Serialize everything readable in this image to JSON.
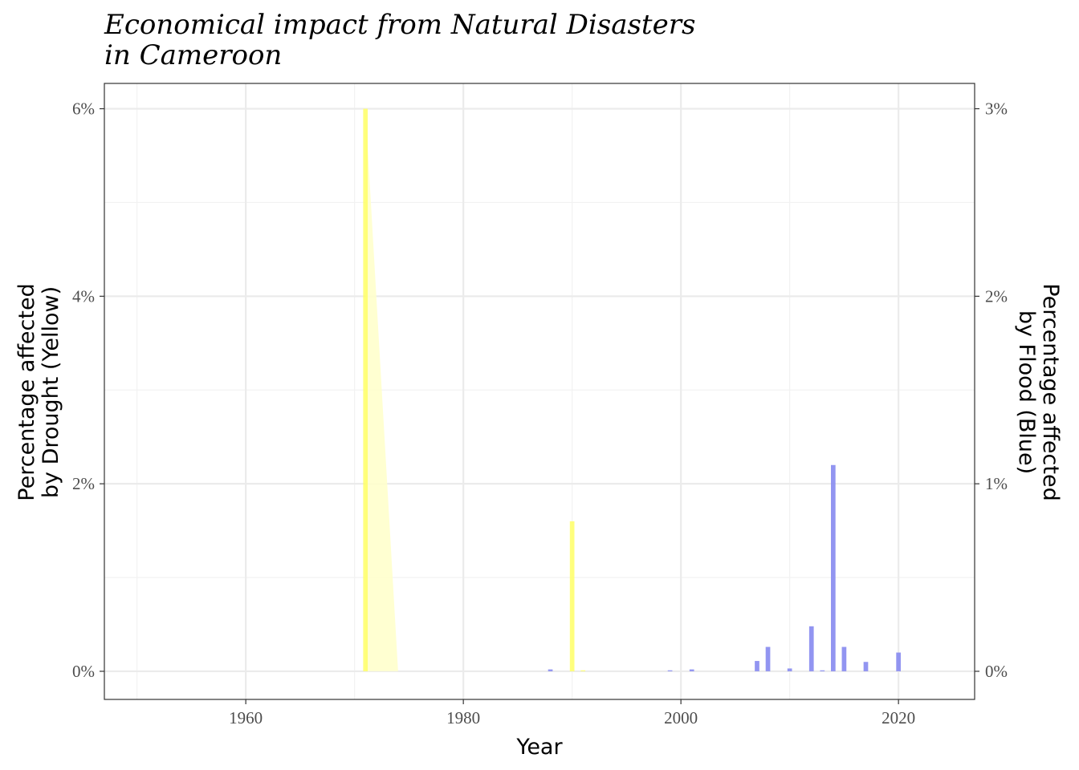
{
  "chart_data": {
    "type": "bar",
    "title_lines": [
      "Economical impact from Natural Disasters",
      "in Cameroon"
    ],
    "xlabel": "Year",
    "ylabel_left_lines": [
      "Percentage affected",
      "by Drought  (Yellow)"
    ],
    "ylabel_right_lines": [
      "Percentage affected",
      "by Flood (Blue)"
    ],
    "xlim": [
      1947,
      2027
    ],
    "ylim_left": [
      -0.3,
      6.27
    ],
    "ylim_right": [
      -0.15,
      3.135
    ],
    "x_ticks": [
      1960,
      1980,
      2000,
      2020
    ],
    "x_tick_labels": [
      "1960",
      "1980",
      "2000",
      "2020"
    ],
    "y_left_ticks": [
      0,
      2,
      4,
      6
    ],
    "y_left_tick_labels": [
      "0%",
      "2%",
      "4%",
      "6%"
    ],
    "y_right_ticks": [
      0,
      1,
      2,
      3
    ],
    "y_right_tick_labels": [
      "0%",
      "1%",
      "2%",
      "3%"
    ],
    "grid": true,
    "colors": {
      "drought": "#ffff66",
      "drought_area": "#ffffcc",
      "flood": "#8c8ff0",
      "grid_major": "#ebebeb",
      "grid_minor": "#f2f2f2",
      "panel_border": "#333333"
    },
    "series": [
      {
        "axis": "left",
        "points": [
          {
            "x": 1971,
            "y": 6.0
          },
          {
            "x": 1990,
            "y": 1.6
          },
          {
            "x": 1991,
            "y": 0.01
          }
        ]
      },
      {
        "axis": "right",
        "points": [
          {
            "x": 1988,
            "y": 0.01
          },
          {
            "x": 1999,
            "y": 0.004
          },
          {
            "x": 2001,
            "y": 0.01
          },
          {
            "x": 2007,
            "y": 0.055
          },
          {
            "x": 2008,
            "y": 0.13
          },
          {
            "x": 2010,
            "y": 0.015
          },
          {
            "x": 2012,
            "y": 0.24
          },
          {
            "x": 2013,
            "y": 0.005
          },
          {
            "x": 2014,
            "y": 1.1
          },
          {
            "x": 2015,
            "y": 0.13
          },
          {
            "x": 2017,
            "y": 0.05
          },
          {
            "x": 2020,
            "y": 0.1
          }
        ]
      }
    ],
    "drought_area_points": [
      {
        "x": 1971,
        "y": 6.0
      },
      {
        "x": 1974,
        "y": 0.0
      }
    ]
  }
}
